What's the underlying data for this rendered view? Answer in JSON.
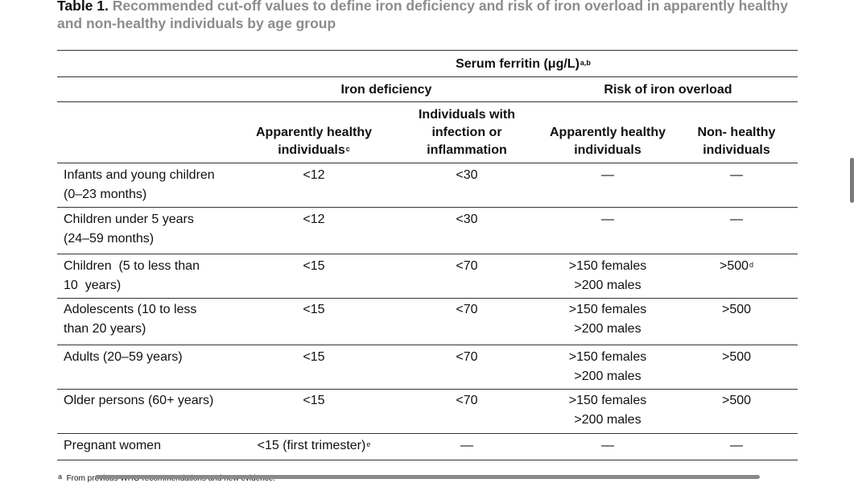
{
  "caption": {
    "label": "Table 1.",
    "text": "Recommended cut-off values to define iron deficiency and risk of iron overload in apparently healthy and non-healthy individuals by age group"
  },
  "header": {
    "serum": "Serum ferritin (μg/L)",
    "serum_sup": "a,b",
    "iron_deficiency": "Iron deficiency",
    "risk_overload": "Risk of iron overload",
    "col_healthy_1": "Apparently healthy",
    "col_healthy_2": "individuals",
    "col_healthy_sup": "c",
    "col_infection_1": "Individuals with",
    "col_infection_2": "infection or",
    "col_infection_3": "inflammation",
    "col_overload_healthy_1": "Apparently healthy",
    "col_overload_healthy_2": "individuals",
    "col_nonhealthy_1": "Non- healthy",
    "col_nonhealthy_2": "individuals"
  },
  "rows": [
    {
      "group_1": "Infants and young children",
      "group_2": "(0–23 months)",
      "healthy": "<12",
      "infection": "<30",
      "overload_healthy": "—",
      "overload_nonhealthy": "—"
    },
    {
      "group_1": "Children under 5 years",
      "group_2": "(24–59 months)",
      "healthy": "<12",
      "infection": "<30",
      "overload_healthy": "—",
      "overload_nonhealthy": "—"
    },
    {
      "group_1": "Children  (5 to less than",
      "group_2": "10  years)",
      "healthy": "<15",
      "infection": "<70",
      "overload_healthy_1": ">150 females",
      "overload_healthy_2": ">200 males",
      "overload_nonhealthy": ">500",
      "overload_nonhealthy_sup": "d"
    },
    {
      "group_1": "Adolescents (10 to less",
      "group_2": "than 20 years)",
      "healthy": "<15",
      "infection": "<70",
      "overload_healthy_1": ">150 females",
      "overload_healthy_2": ">200 males",
      "overload_nonhealthy": ">500"
    },
    {
      "group_1": "Adults (20–59 years)",
      "healthy": "<15",
      "infection": "<70",
      "overload_healthy_1": ">150 females",
      "overload_healthy_2": ">200 males",
      "overload_nonhealthy": ">500"
    },
    {
      "group_1": "Older persons (60+ years)",
      "healthy": "<15",
      "infection": "<70",
      "overload_healthy_1": ">150 females",
      "overload_healthy_2": ">200 males",
      "overload_nonhealthy": ">500"
    },
    {
      "group_1": "Pregnant women",
      "healthy": "<15 (first trimester)",
      "healthy_sup": "e",
      "infection": "—",
      "overload_healthy": "—",
      "overload_nonhealthy": "—"
    }
  ],
  "footnote": {
    "marker": "a",
    "text": "From previous WHO recommendations and new evidence."
  }
}
